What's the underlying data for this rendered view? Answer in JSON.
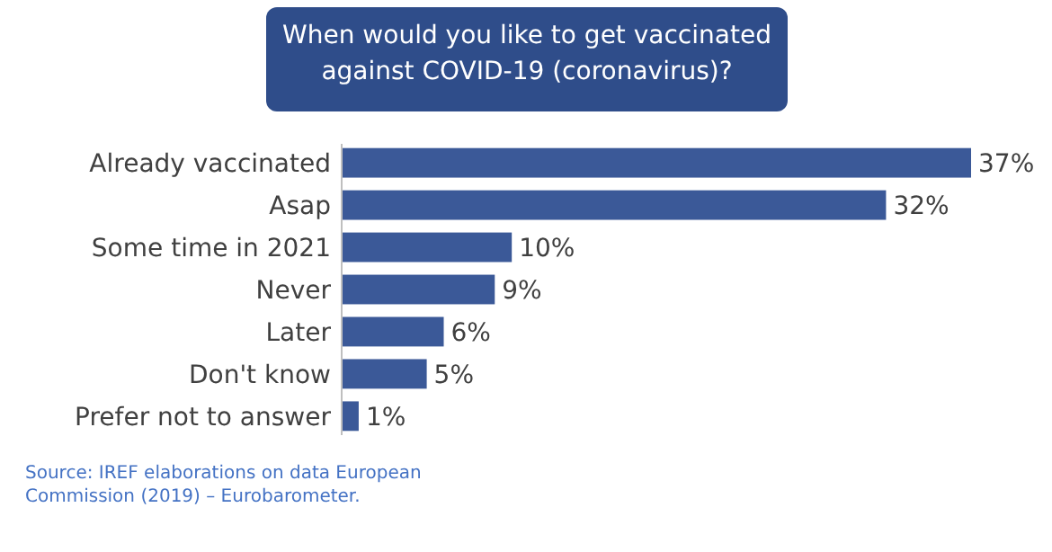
{
  "chart_data": {
    "type": "bar",
    "orientation": "horizontal",
    "title": "When would you like to get vaccinated against COVID-19 (coronavirus)?",
    "categories": [
      "Already vaccinated",
      "Asap",
      "Some time in 2021",
      "Never",
      "Later",
      "Don't know",
      "Prefer not to answer"
    ],
    "values": [
      37,
      32,
      10,
      9,
      6,
      5,
      1
    ],
    "value_labels": [
      "37%",
      "32%",
      "10%",
      "9%",
      "6%",
      "5%",
      "1%"
    ],
    "color": "#3b5998",
    "annotations": [
      "Source: IREF elaborations on data European Commission (2019) – Eurobarometer."
    ]
  }
}
